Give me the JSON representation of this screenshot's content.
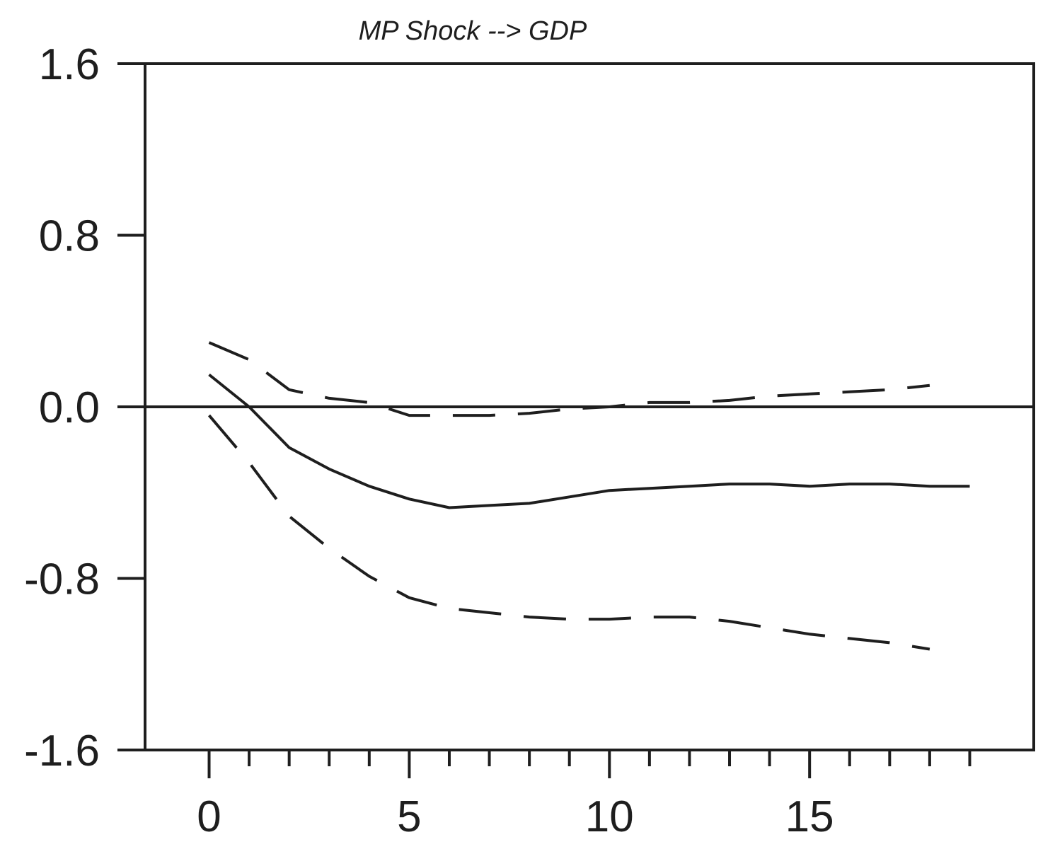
{
  "chart_data": {
    "type": "line",
    "title": "MP Shock --> GDP",
    "xlabel": "",
    "ylabel": "",
    "xlim": [
      -1.6,
      20.6
    ],
    "ylim": [
      -1.6,
      1.6
    ],
    "x_ticks": [
      0,
      5,
      10,
      15
    ],
    "x_tick_labels": [
      "0",
      "5",
      "10",
      "15"
    ],
    "x_minor_ticks": [
      0,
      1,
      2,
      3,
      4,
      5,
      6,
      7,
      8,
      9,
      10,
      11,
      12,
      13,
      14,
      15,
      16,
      17,
      18,
      19
    ],
    "y_ticks": [
      1.6,
      0.8,
      0.0,
      -0.8,
      -1.6
    ],
    "y_tick_labels": [
      "1.6",
      "0.8",
      "0.0",
      "-0.8",
      "-1.6"
    ],
    "zero_line": 0.0,
    "grid": false,
    "legend": "none",
    "colors": {
      "line": "#1e1e1e",
      "background": "#ffffff"
    },
    "series": [
      {
        "style": "solid",
        "x": [
          0,
          1,
          2,
          3,
          4,
          5,
          6,
          7,
          8,
          9,
          10,
          11,
          12,
          13,
          14,
          15,
          16,
          17,
          18,
          19
        ],
        "values": [
          0.15,
          0.0,
          -0.19,
          -0.29,
          -0.37,
          -0.43,
          -0.47,
          -0.46,
          -0.45,
          -0.42,
          -0.39,
          -0.38,
          -0.37,
          -0.36,
          -0.36,
          -0.37,
          -0.36,
          -0.36,
          -0.37,
          -0.37
        ]
      },
      {
        "style": "dashed",
        "x": [
          0,
          1,
          2,
          3,
          4,
          5,
          6,
          7,
          8,
          9,
          10,
          11,
          12,
          13,
          14,
          15,
          16,
          17,
          18
        ],
        "values": [
          0.3,
          0.22,
          0.08,
          0.04,
          0.02,
          -0.04,
          -0.04,
          -0.04,
          -0.03,
          -0.01,
          0.0,
          0.02,
          0.02,
          0.03,
          0.05,
          0.06,
          0.07,
          0.08,
          0.1
        ]
      },
      {
        "style": "dashed",
        "x": [
          0,
          1,
          2,
          3,
          4,
          5,
          6,
          7,
          8,
          9,
          10,
          11,
          12,
          13,
          14,
          15,
          16,
          17,
          18
        ],
        "values": [
          -0.04,
          -0.26,
          -0.51,
          -0.66,
          -0.79,
          -0.89,
          -0.94,
          -0.96,
          -0.98,
          -0.99,
          -0.99,
          -0.98,
          -0.98,
          -1.0,
          -1.03,
          -1.06,
          -1.08,
          -1.1,
          -1.13
        ]
      }
    ]
  }
}
